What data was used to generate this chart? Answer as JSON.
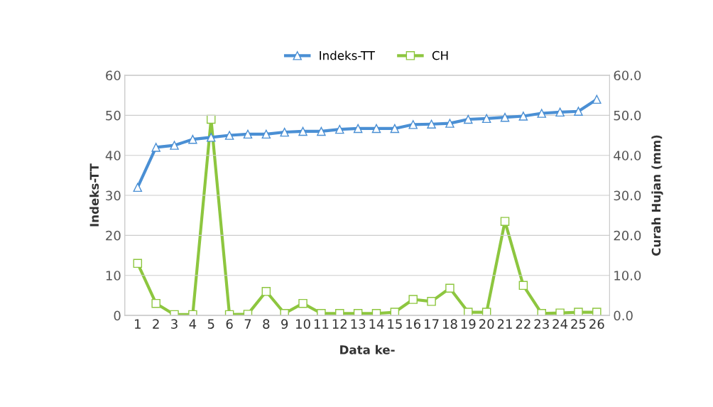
{
  "chart_data": {
    "type": "line",
    "xlabel": "Data ke-",
    "ylabel": "Indeks-TT",
    "y2label": "Curah Hujan (mm)",
    "categories": [
      "1",
      "2",
      "3",
      "4",
      "5",
      "6",
      "7",
      "8",
      "9",
      "10",
      "11",
      "12",
      "13",
      "14",
      "15",
      "16",
      "17",
      "18",
      "19",
      "20",
      "21",
      "22",
      "23",
      "24",
      "25",
      "26"
    ],
    "series": [
      {
        "name": "Indeks-TT",
        "color": "#4a8fd4",
        "marker": "triangle",
        "values": [
          32,
          42,
          42.5,
          44,
          44.5,
          45,
          45.3,
          45.3,
          45.8,
          46,
          46,
          46.5,
          46.7,
          46.7,
          46.7,
          47.7,
          47.8,
          48,
          49,
          49.2,
          49.5,
          49.8,
          50.5,
          50.8,
          51,
          54
        ]
      },
      {
        "name": "CH",
        "color": "#8dc63f",
        "marker": "square",
        "axis": "y2",
        "values": [
          13,
          3,
          0.2,
          0.2,
          49,
          0.2,
          0.3,
          6,
          0.5,
          3,
          0.5,
          0.5,
          0.5,
          0.5,
          0.8,
          4,
          3.5,
          6.8,
          0.8,
          0.8,
          23.5,
          7.5,
          0.5,
          0.6,
          0.8,
          0.8
        ]
      }
    ],
    "ylim": [
      0,
      60
    ],
    "yticks": [
      0,
      10,
      20,
      30,
      40,
      50,
      60
    ],
    "y2lim": [
      0,
      60
    ],
    "y2ticks": [
      {
        "value": 0,
        "label": "0.0"
      },
      {
        "value": 10,
        "label": "10.0"
      },
      {
        "value": 20,
        "label": "20.0"
      },
      {
        "value": 30,
        "label": "30.0"
      },
      {
        "value": 40,
        "label": "40.0"
      },
      {
        "value": 50,
        "label": "50.0"
      },
      {
        "value": 60,
        "label": "60.0"
      }
    ],
    "grid": "y",
    "legend": "top",
    "line_style": "solid"
  }
}
